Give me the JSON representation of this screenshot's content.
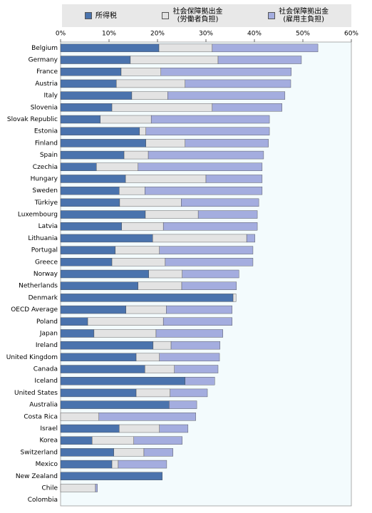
{
  "chart_data": {
    "type": "stacked-barh",
    "categories": [
      "Belgium",
      "Germany",
      "France",
      "Austria",
      "Italy",
      "Slovenia",
      "Slovak Republic",
      "Estonia",
      "Finland",
      "Spain",
      "Czechia",
      "Hungary",
      "Sweden",
      "Türkiye",
      "Luxembourg",
      "Latvia",
      "Lithuania",
      "Portugal",
      "Greece",
      "Norway",
      "Netherlands",
      "Denmark",
      "OECD Average",
      "Poland",
      "Japan",
      "Ireland",
      "United Kingdom",
      "Canada",
      "Iceland",
      "United States",
      "Australia",
      "Costa Rica",
      "Israel",
      "Korea",
      "Switzerland",
      "Mexico",
      "New Zealand",
      "Chile",
      "Colombia"
    ],
    "series": [
      {
        "name": "所得税",
        "color": "#4a73ad",
        "values": [
          20.3,
          14.4,
          12.5,
          11.5,
          14.7,
          10.6,
          8.2,
          16.3,
          17.6,
          13.1,
          7.4,
          13.4,
          12.1,
          12.2,
          17.5,
          12.6,
          19.0,
          11.3,
          10.6,
          18.2,
          16.0,
          35.6,
          13.5,
          5.6,
          6.9,
          19.1,
          15.6,
          17.4,
          25.7,
          15.6,
          22.4,
          0,
          12.1,
          6.5,
          11.0,
          10.6,
          21.0,
          0,
          0
        ]
      },
      {
        "name": "社会保障拠出金\n(労働者負担)",
        "color": "#e3e3e3",
        "values": [
          11.0,
          18.1,
          8.2,
          14.2,
          7.4,
          20.7,
          10.5,
          1.3,
          8.1,
          5.0,
          8.6,
          16.6,
          5.3,
          12.7,
          10.9,
          8.6,
          19.4,
          9.1,
          11.0,
          6.9,
          9.0,
          0.6,
          8.3,
          15.6,
          12.8,
          3.7,
          4.8,
          6.1,
          0,
          7.0,
          0,
          7.9,
          8.3,
          8.6,
          6.2,
          1.3,
          0,
          7.2,
          0
        ]
      },
      {
        "name": "社会保障拠出金\n(雇用主負担)",
        "color": "#a4addf",
        "values": [
          21.8,
          17.2,
          26.9,
          21.8,
          24.2,
          14.4,
          24.4,
          25.5,
          17.2,
          23.8,
          25.6,
          11.6,
          24.2,
          16.0,
          12.2,
          19.4,
          1.7,
          19.3,
          18.1,
          11.7,
          11.3,
          0,
          13.6,
          14.2,
          13.8,
          10.1,
          12.4,
          9.0,
          6.1,
          7.7,
          5.7,
          20.0,
          5.9,
          10.0,
          6.0,
          10.0,
          0,
          0.4,
          0
        ]
      }
    ],
    "xlim": [
      0,
      60
    ],
    "xticks": [
      {
        "value": 0,
        "label": "0%"
      },
      {
        "value": 10,
        "label": "10%"
      },
      {
        "value": 20,
        "label": "20%"
      },
      {
        "value": 30,
        "label": "30%"
      },
      {
        "value": 40,
        "label": "40%"
      },
      {
        "value": 50,
        "label": "50%"
      },
      {
        "value": 60,
        "label": "60%"
      }
    ],
    "legend": "top"
  }
}
